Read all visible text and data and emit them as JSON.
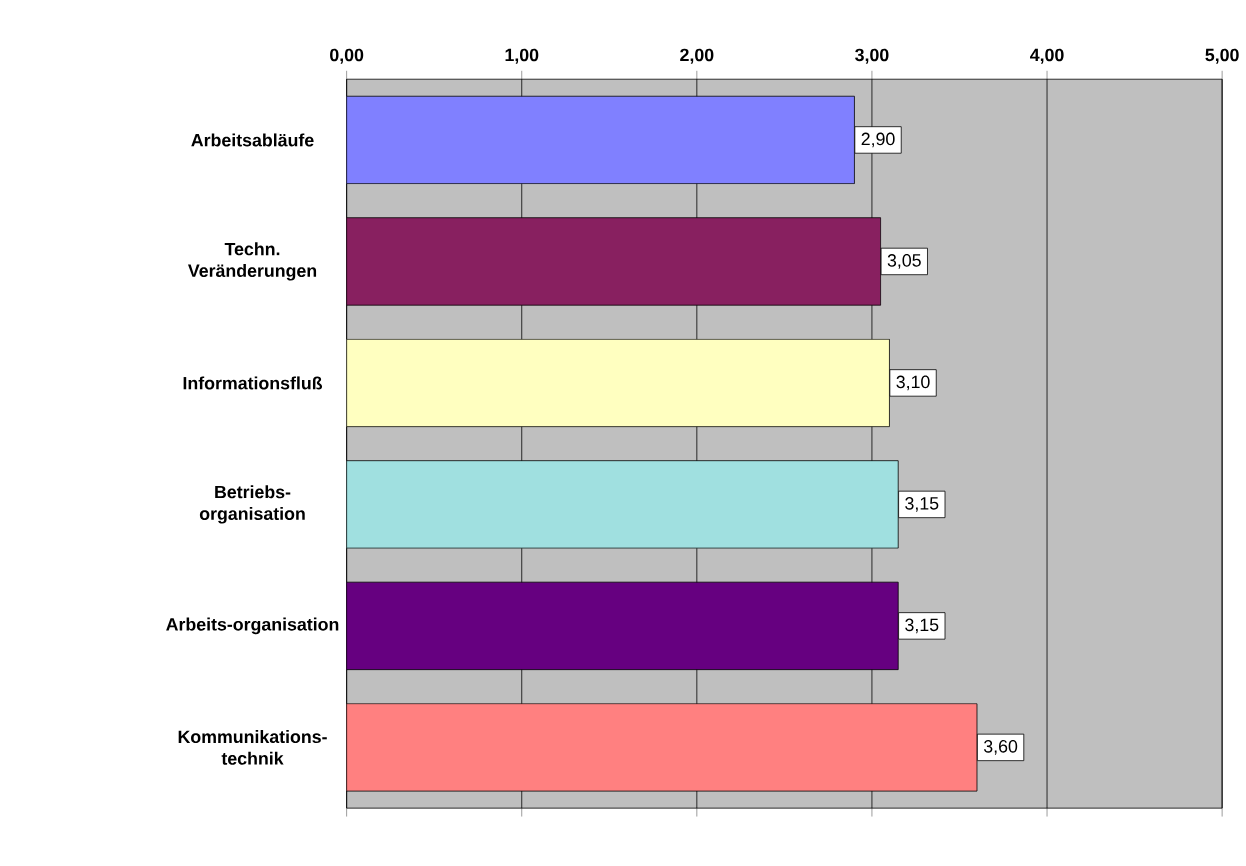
{
  "chart_data": {
    "type": "bar",
    "orientation": "horizontal",
    "categories": [
      "Arbeitsabläufe",
      "Techn. Veränderungen",
      "Informationsfluß",
      "Betriebs-organisation",
      "Arbeits-organisation",
      "Kommunikations-technik"
    ],
    "values": [
      2.9,
      3.05,
      3.1,
      3.15,
      3.15,
      3.6
    ],
    "value_labels": [
      "2,90",
      "3,05",
      "3,10",
      "3,15",
      "3,15",
      "3,60"
    ],
    "colors": [
      "#8080ff",
      "#882060",
      "#ffffc0",
      "#a0e0e0",
      "#660080",
      "#ff8080"
    ],
    "xlim": [
      0,
      5
    ],
    "xticks": [
      {
        "value": 0,
        "label": "0,00"
      },
      {
        "value": 1,
        "label": "1,00"
      },
      {
        "value": 2,
        "label": "2,00"
      },
      {
        "value": 3,
        "label": "3,00"
      },
      {
        "value": 4,
        "label": "4,00"
      },
      {
        "value": 5,
        "label": "5,00"
      }
    ],
    "grid": "x"
  }
}
